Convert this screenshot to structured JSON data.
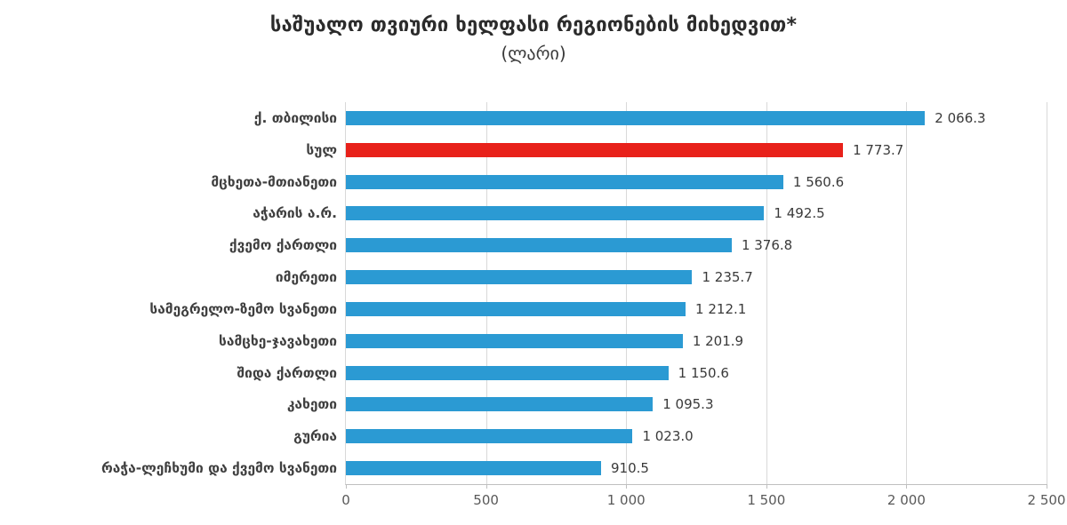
{
  "title": "საშუალო თვიური ხელფასი რეგიონების მიხედვით*",
  "subtitle": "(ლარი)",
  "chart_data": {
    "type": "bar",
    "orientation": "horizontal",
    "title": "საშუალო თვიური ხელფასი რეგიონების მიხედვით*",
    "subtitle": "(ლარი)",
    "categories": [
      "ქ. თბილისი",
      "სულ",
      "მცხეთა-მთიანეთი",
      "აჭარის ა.რ.",
      "ქვემო ქართლი",
      "იმერეთი",
      "სამეგრელო-ზემო სვანეთი",
      "სამცხე-ჯავახეთი",
      "შიდა ქართლი",
      "კახეთი",
      "გურია",
      "რაჭა-ლეჩხუმი და ქვემო სვანეთი"
    ],
    "values": [
      2066.3,
      1773.7,
      1560.6,
      1492.5,
      1376.8,
      1235.7,
      1212.1,
      1201.9,
      1150.6,
      1095.3,
      1023.0,
      910.5
    ],
    "value_labels": [
      "2 066.3",
      "1 773.7",
      "1 560.6",
      "1 492.5",
      "1 376.8",
      "1 235.7",
      "1 212.1",
      "1 201.9",
      "1 150.6",
      "1 095.3",
      "1 023.0",
      "910.5"
    ],
    "highlight_index": 1,
    "colors": {
      "bar": "#2b9ad3",
      "highlight": "#e8211a",
      "gridline": "#d9d9d9",
      "axis": "#bfbfbf"
    },
    "xlabel": "",
    "ylabel": "",
    "xlim": [
      0,
      2500
    ],
    "x_ticks": [
      0,
      500,
      1000,
      1500,
      2000,
      2500
    ],
    "x_tick_labels": [
      "0",
      "500",
      "1 000",
      "1 500",
      "2 000",
      "2 500"
    ],
    "grid": true,
    "legend": false
  }
}
